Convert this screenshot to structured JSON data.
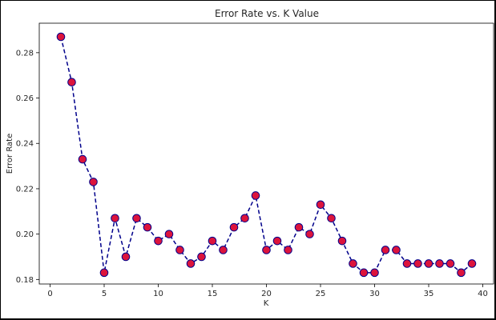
{
  "chart_data": {
    "type": "line",
    "title": "Error Rate vs. K Value",
    "xlabel": "K",
    "ylabel": "Error Rate",
    "xlim": [
      -1,
      41
    ],
    "ylim": [
      0.178,
      0.293
    ],
    "xticks": [
      0,
      5,
      10,
      15,
      20,
      25,
      30,
      35,
      40
    ],
    "yticks": [
      0.18,
      0.2,
      0.22,
      0.24,
      0.26,
      0.28
    ],
    "ytick_labels": [
      "0.18",
      "0.20",
      "0.22",
      "0.24",
      "0.26",
      "0.28"
    ],
    "grid": false,
    "series": [
      {
        "x": [
          1,
          2,
          3,
          4,
          5,
          6,
          7,
          8,
          9,
          10,
          11,
          12,
          13,
          14,
          15,
          16,
          17,
          18,
          19,
          20,
          21,
          22,
          23,
          24,
          25,
          26,
          27,
          28,
          29,
          30,
          31,
          32,
          33,
          34,
          35,
          36,
          37,
          38,
          39
        ],
        "values": [
          0.287,
          0.267,
          0.233,
          0.223,
          0.183,
          0.207,
          0.19,
          0.207,
          0.203,
          0.197,
          0.2,
          0.193,
          0.187,
          0.19,
          0.197,
          0.193,
          0.203,
          0.207,
          0.217,
          0.193,
          0.197,
          0.193,
          0.203,
          0.2,
          0.213,
          0.207,
          0.197,
          0.187,
          0.183,
          0.183,
          0.193,
          0.193,
          0.187,
          0.187,
          0.187,
          0.187,
          0.187,
          0.183,
          0.187
        ],
        "line_color": "#00008b",
        "line_style": "dashed",
        "marker": "circle",
        "marker_face_color": "#dc143c",
        "marker_edge_color": "#00008b"
      }
    ]
  }
}
